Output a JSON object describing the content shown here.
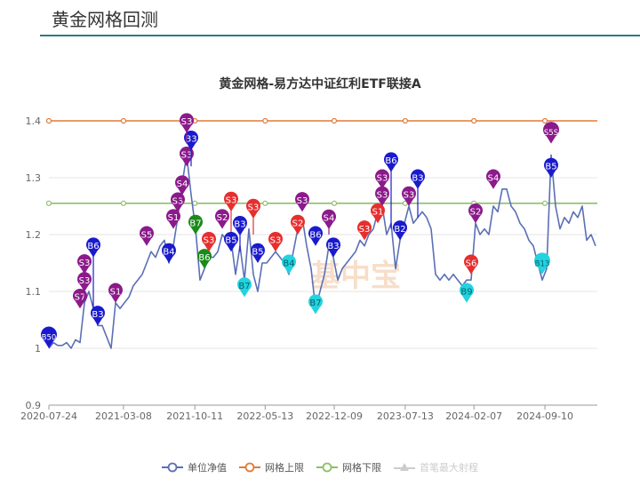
{
  "header": {
    "title": "黄金网格回测"
  },
  "colors": {
    "nav": "#5b6fb5",
    "upper": "#e07b39",
    "lower": "#8cc06a",
    "rule": "#2b7a86",
    "marker_purple": "#8b1a8b",
    "marker_blue": "#1a1acd",
    "marker_red": "#e62e2e",
    "marker_green": "#1a8a1a",
    "marker_cyan": "#22d3e0"
  },
  "chart_data": {
    "type": "line",
    "title": "黄金网格-易方达中证红利ETF联接A",
    "watermark": "基中宝",
    "x_range": [
      "2020-07-24",
      "2025-02-11"
    ],
    "x_ticks": [
      "2020-07-24",
      "2021-03-08",
      "2021-10-11",
      "2022-05-13",
      "2022-12-09",
      "2023-07-13",
      "2024-02-07",
      "2024-09-10"
    ],
    "ylim": [
      0.9,
      1.4
    ],
    "y_ticks": [
      "0.9",
      "1",
      "1.1",
      "1.2",
      "1.3",
      "1.4"
    ],
    "grid": true,
    "legend_position": "bottom",
    "legend": [
      {
        "name": "单位净值",
        "key": "nav",
        "active": true,
        "symbol": "circle"
      },
      {
        "name": "网格上限",
        "key": "upper",
        "active": true,
        "symbol": "circle"
      },
      {
        "name": "网格下限",
        "key": "lower",
        "active": true,
        "symbol": "circle"
      },
      {
        "name": "首笔最大射程",
        "key": "range",
        "active": false,
        "symbol": "triangle"
      }
    ],
    "upper_limit": 1.4,
    "lower_limit": 1.255,
    "nav_values": [
      1.0,
      1.01,
      1.005,
      1.005,
      1.01,
      1.0,
      1.015,
      1.01,
      1.08,
      1.1,
      1.07,
      1.04,
      1.04,
      1.02,
      1.0,
      1.08,
      1.07,
      1.08,
      1.09,
      1.11,
      1.12,
      1.13,
      1.15,
      1.17,
      1.16,
      1.18,
      1.19,
      1.15,
      1.18,
      1.23,
      1.29,
      1.34,
      1.27,
      1.21,
      1.12,
      1.14,
      1.16,
      1.16,
      1.17,
      1.2,
      1.19,
      1.19,
      1.13,
      1.18,
      1.12,
      1.21,
      1.13,
      1.1,
      1.15,
      1.15,
      1.16,
      1.17,
      1.16,
      1.15,
      1.13,
      1.17,
      1.21,
      1.23,
      1.18,
      1.14,
      1.07,
      1.1,
      1.13,
      1.18,
      1.16,
      1.12,
      1.14,
      1.15,
      1.16,
      1.17,
      1.19,
      1.18,
      1.2,
      1.21,
      1.24,
      1.25,
      1.2,
      1.22,
      1.14,
      1.19,
      1.22,
      1.25,
      1.22,
      1.23,
      1.24,
      1.23,
      1.21,
      1.13,
      1.12,
      1.13,
      1.12,
      1.13,
      1.12,
      1.11,
      1.12,
      1.12,
      1.22,
      1.2,
      1.21,
      1.2,
      1.25,
      1.24,
      1.28,
      1.28,
      1.25,
      1.24,
      1.22,
      1.21,
      1.19,
      1.18,
      1.15,
      1.12,
      1.14,
      1.34,
      1.25,
      1.21,
      1.23,
      1.22,
      1.24,
      1.23,
      1.25,
      1.19,
      1.2,
      1.18
    ],
    "trade_markers": [
      {
        "i": 0,
        "label": "B50",
        "type": "blue",
        "value": 1.0
      },
      {
        "i": 7,
        "label": "S7",
        "type": "purple",
        "value": 1.07
      },
      {
        "i": 8,
        "label": "S3",
        "type": "purple",
        "value": 1.09
      },
      {
        "i": 8,
        "label": "S3",
        "type": "purple",
        "value": 1.115
      },
      {
        "i": 10,
        "label": "B6",
        "type": "blue",
        "value": 1.06
      },
      {
        "i": 11,
        "label": "B3",
        "type": "blue",
        "value": 1.04
      },
      {
        "i": 15,
        "label": "S1",
        "type": "purple",
        "value": 1.08
      },
      {
        "i": 22,
        "label": "S5",
        "type": "purple",
        "value": 1.18
      },
      {
        "i": 27,
        "label": "B4",
        "type": "blue",
        "value": 1.15
      },
      {
        "i": 28,
        "label": "S1",
        "type": "purple",
        "value": 1.21
      },
      {
        "i": 29,
        "label": "S3",
        "type": "purple",
        "value": 1.23
      },
      {
        "i": 30,
        "label": "S4",
        "type": "purple",
        "value": 1.26
      },
      {
        "i": 31,
        "label": "S3",
        "type": "purple",
        "value": 1.32
      },
      {
        "i": 32,
        "label": "B3",
        "type": "blue",
        "value": 1.32
      },
      {
        "i": 31,
        "label": "S3",
        "type": "purple",
        "value": 1.36
      },
      {
        "i": 33,
        "label": "B7",
        "type": "green",
        "value": 1.2
      },
      {
        "i": 35,
        "label": "B6",
        "type": "green",
        "value": 1.14
      },
      {
        "i": 36,
        "label": "S3",
        "type": "red",
        "value": 1.17
      },
      {
        "i": 39,
        "label": "S2",
        "type": "purple",
        "value": 1.21
      },
      {
        "i": 41,
        "label": "S3",
        "type": "red",
        "value": 1.2
      },
      {
        "i": 41,
        "label": "B5",
        "type": "blue",
        "value": 1.17
      },
      {
        "i": 43,
        "label": "B3",
        "type": "blue",
        "value": 1.17
      },
      {
        "i": 44,
        "label": "B7",
        "type": "cyan",
        "value": 1.09
      },
      {
        "i": 46,
        "label": "S3",
        "type": "red",
        "value": 1.2
      },
      {
        "i": 47,
        "label": "B5",
        "type": "blue",
        "value": 1.15
      },
      {
        "i": 51,
        "label": "S3",
        "type": "red",
        "value": 1.17
      },
      {
        "i": 54,
        "label": "B4",
        "type": "cyan",
        "value": 1.13
      },
      {
        "i": 56,
        "label": "S2",
        "type": "red",
        "value": 1.2
      },
      {
        "i": 57,
        "label": "S3",
        "type": "purple",
        "value": 1.24
      },
      {
        "i": 60,
        "label": "B6",
        "type": "blue",
        "value": 1.18
      },
      {
        "i": 60,
        "label": "B7",
        "type": "cyan",
        "value": 1.06
      },
      {
        "i": 63,
        "label": "S4",
        "type": "purple",
        "value": 1.2
      },
      {
        "i": 64,
        "label": "B3",
        "type": "blue",
        "value": 1.16
      },
      {
        "i": 71,
        "label": "S3",
        "type": "red",
        "value": 1.19
      },
      {
        "i": 74,
        "label": "S1",
        "type": "red",
        "value": 1.22
      },
      {
        "i": 75,
        "label": "S3",
        "type": "purple",
        "value": 1.25
      },
      {
        "i": 75,
        "label": "S3",
        "type": "purple",
        "value": 1.28
      },
      {
        "i": 77,
        "label": "B6",
        "type": "blue",
        "value": 1.21
      },
      {
        "i": 79,
        "label": "B2",
        "type": "blue",
        "value": 1.19
      },
      {
        "i": 81,
        "label": "S3",
        "type": "purple",
        "value": 1.25
      },
      {
        "i": 83,
        "label": "B3",
        "type": "blue",
        "value": 1.23
      },
      {
        "i": 94,
        "label": "B9",
        "type": "cyan",
        "value": 1.08
      },
      {
        "i": 95,
        "label": "S6",
        "type": "red",
        "value": 1.13
      },
      {
        "i": 96,
        "label": "S2",
        "type": "purple",
        "value": 1.22
      },
      {
        "i": 100,
        "label": "S4",
        "type": "purple",
        "value": 1.28
      },
      {
        "i": 111,
        "label": "B13",
        "type": "cyan",
        "value": 1.13
      },
      {
        "i": 113,
        "label": "B5",
        "type": "blue",
        "value": 1.3
      },
      {
        "i": 113,
        "label": "S5S",
        "type": "purple",
        "value": 1.36
      }
    ]
  }
}
